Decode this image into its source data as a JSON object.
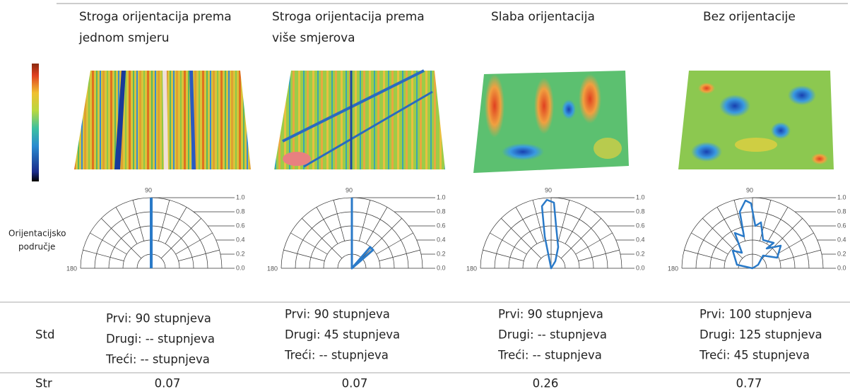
{
  "columns": [
    {
      "title_lines": [
        "Stroga orijentacija prema",
        "jednom smjeru"
      ],
      "std": [
        "Prvi: 90 stupnjeva",
        "Drugi: -- stupnjeva",
        "Treći: -- stupnjeva"
      ],
      "str": 0.07
    },
    {
      "title_lines": [
        "Stroga orijentacija prema",
        "više smjerova"
      ],
      "std": [
        "Prvi: 90 stupnjeva",
        "Drugi: 45 stupnjeva",
        "Treći: -- stupnjeva"
      ],
      "str": 0.07
    },
    {
      "title_lines": [
        "Slaba orijentacija"
      ],
      "std": [
        "Prvi: 90 stupnjeva",
        "Drugi: -- stupnjeva",
        "Treći: -- stupnjeva"
      ],
      "str": 0.26
    },
    {
      "title_lines": [
        "Bez orijentacije"
      ],
      "std": [
        "Prvi: 100 stupnjeva",
        "Drugi: 125 stupnjeva",
        "Treći: 45 stupnjeva"
      ],
      "str": 0.77
    }
  ],
  "polar_labels": {
    "top": 90,
    "left": 180,
    "radius": [
      "1.0",
      "0.8",
      "0.6",
      "0.4",
      "0.2",
      "0.0"
    ]
  },
  "side_label": [
    "Orijentacijsko",
    "područje"
  ],
  "row_labels": {
    "std": "Std",
    "str": "Str"
  }
}
